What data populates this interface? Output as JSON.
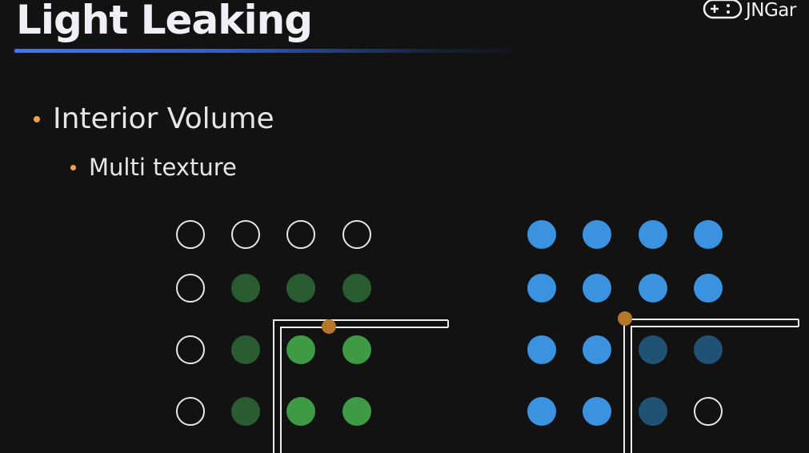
{
  "slide": {
    "title": "Light Leaking",
    "logo_text": "JNGar",
    "bullets": [
      {
        "level": 1,
        "text": "Interior Volume"
      },
      {
        "level": 2,
        "text": "Multi texture"
      }
    ]
  },
  "colors": {
    "background": "#121212",
    "title_underline": "#3a78ff",
    "bullet_dot": "#f0a24a",
    "probe_empty_stroke": "#e6e6e6",
    "dark_green": "#2a5c32",
    "bright_green": "#3f9a46",
    "blue": "#3b93e0",
    "dark_blue": "#1f5273",
    "wall": "#ececec",
    "sample_point": "#b5782a"
  },
  "grids": [
    {
      "name": "left-probe-grid",
      "rows": [
        [
          "empty",
          "empty",
          "empty",
          "empty"
        ],
        [
          "empty",
          "dark_green",
          "dark_green",
          "dark_green"
        ],
        [
          "empty",
          "dark_green",
          "bright_green",
          "bright_green"
        ],
        [
          "empty",
          "dark_green",
          "bright_green",
          "bright_green"
        ]
      ]
    },
    {
      "name": "right-probe-grid",
      "rows": [
        [
          "blue",
          "blue",
          "blue",
          "blue"
        ],
        [
          "blue",
          "blue",
          "blue",
          "blue"
        ],
        [
          "blue",
          "blue",
          "dark_blue",
          "dark_blue"
        ],
        [
          "blue",
          "blue",
          "dark_blue",
          "empty"
        ]
      ]
    }
  ]
}
